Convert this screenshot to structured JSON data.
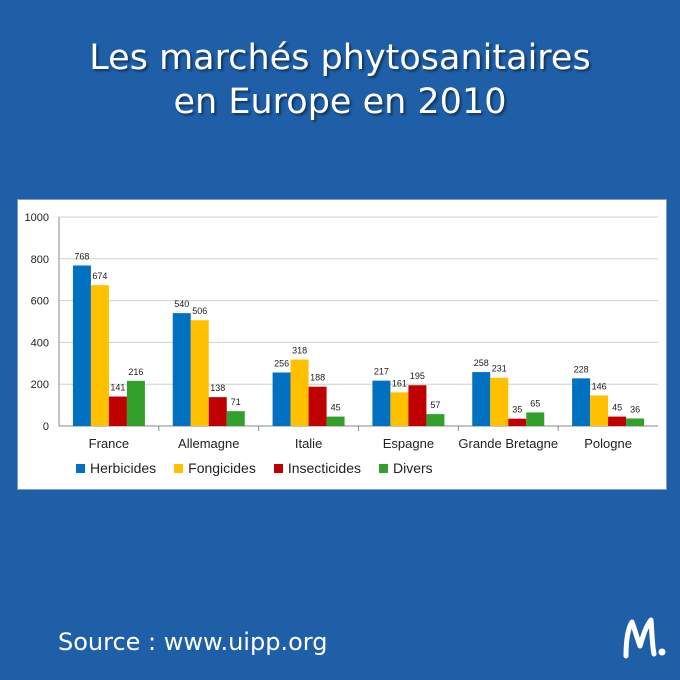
{
  "header": {
    "title_line1": "Les marchés phytosanitaires",
    "title_line2": "en Europe en 2010"
  },
  "footer": {
    "source": "Source : www.uipp.org"
  },
  "colors": {
    "background": "#1e5fa8",
    "Herbicides": "#0070c0",
    "Fongicides": "#ffc000",
    "Insecticides": "#c00000",
    "Divers": "#33a02c"
  },
  "logo": {
    "icon": "m-logo-icon"
  },
  "chart_data": {
    "type": "bar",
    "title": "",
    "xlabel": "",
    "ylabel": "",
    "ylim": [
      0,
      1000
    ],
    "yticks": [
      0,
      200,
      400,
      600,
      800,
      1000
    ],
    "grid": true,
    "legend_position": "bottom",
    "categories": [
      "France",
      "Allemagne",
      "Italie",
      "Espagne",
      "Grande Bretagne",
      "Pologne"
    ],
    "series": [
      {
        "name": "Herbicides",
        "values": [
          768,
          540,
          256,
          217,
          258,
          228
        ]
      },
      {
        "name": "Fongicides",
        "values": [
          674,
          506,
          318,
          161,
          231,
          146
        ]
      },
      {
        "name": "Insecticides",
        "values": [
          141,
          138,
          188,
          195,
          35,
          45
        ]
      },
      {
        "name": "Divers",
        "values": [
          216,
          71,
          45,
          57,
          65,
          36
        ]
      }
    ]
  }
}
